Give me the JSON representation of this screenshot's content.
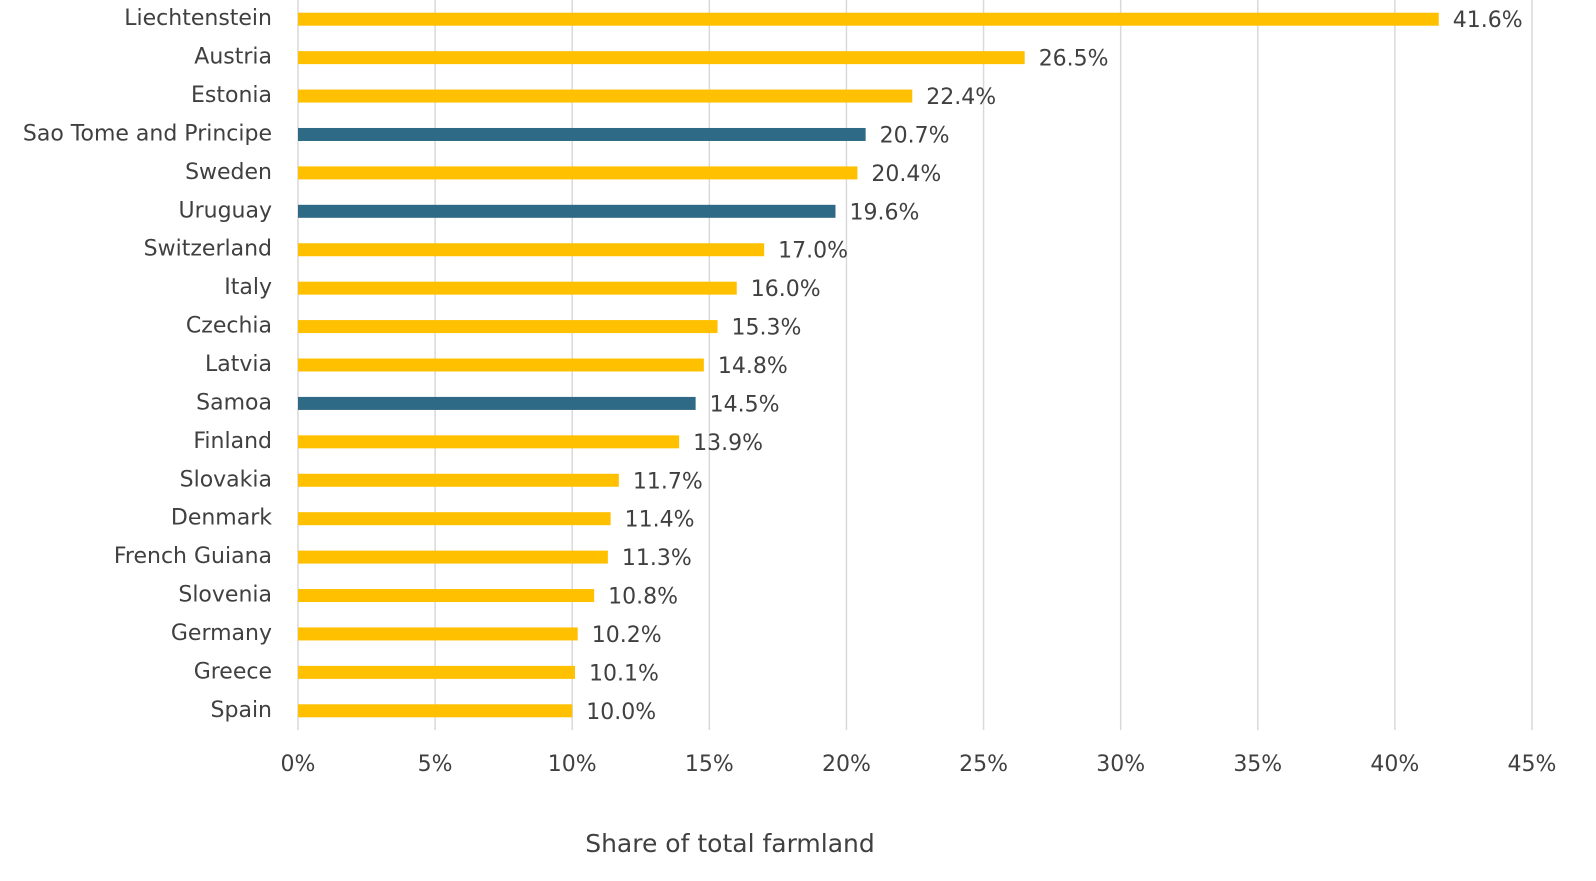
{
  "chart_data": {
    "type": "barh",
    "x_label": "Share of total farmland",
    "categories": [
      "Liechtenstein",
      "Austria",
      "Estonia",
      "Sao Tome and Principe",
      "Sweden",
      "Uruguay",
      "Switzerland",
      "Italy",
      "Czechia",
      "Latvia",
      "Samoa",
      "Finland",
      "Slovakia",
      "Denmark",
      "French Guiana",
      "Slovenia",
      "Germany",
      "Greece",
      "Spain"
    ],
    "values": [
      41.6,
      26.5,
      22.4,
      20.7,
      20.4,
      19.6,
      17.0,
      16.0,
      15.3,
      14.8,
      14.5,
      13.9,
      11.7,
      11.4,
      11.3,
      10.8,
      10.2,
      10.1,
      10.0
    ],
    "value_labels": [
      "41.6%",
      "26.5%",
      "22.4%",
      "20.7%",
      "20.4%",
      "19.6%",
      "17.0%",
      "16.0%",
      "15.3%",
      "14.8%",
      "14.5%",
      "13.9%",
      "11.7%",
      "11.4%",
      "11.3%",
      "10.8%",
      "10.2%",
      "10.1%",
      "10.0%"
    ],
    "colors": [
      "#FFC000",
      "#FFC000",
      "#FFC000",
      "#2E6A85",
      "#FFC000",
      "#2E6A85",
      "#FFC000",
      "#FFC000",
      "#FFC000",
      "#FFC000",
      "#2E6A85",
      "#FFC000",
      "#FFC000",
      "#FFC000",
      "#FFC000",
      "#FFC000",
      "#FFC000",
      "#FFC000",
      "#FFC000"
    ],
    "xlim": [
      0,
      45
    ],
    "xticks": [
      {
        "value": 0,
        "label": "0%"
      },
      {
        "value": 5,
        "label": "5%"
      },
      {
        "value": 10,
        "label": "10%"
      },
      {
        "value": 15,
        "label": "15%"
      },
      {
        "value": 20,
        "label": "20%"
      },
      {
        "value": 25,
        "label": "25%"
      },
      {
        "value": 30,
        "label": "30%"
      },
      {
        "value": 35,
        "label": "35%"
      },
      {
        "value": 40,
        "label": "40%"
      },
      {
        "value": 45,
        "label": "45%"
      }
    ],
    "grid": true
  }
}
